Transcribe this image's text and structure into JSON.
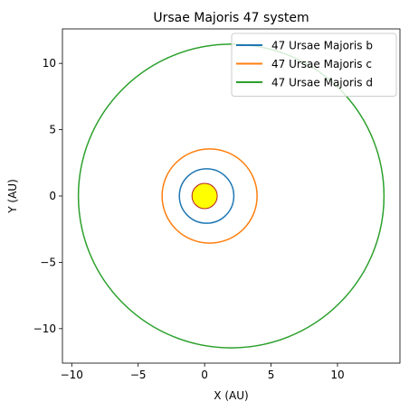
{
  "chart_data": {
    "type": "line",
    "title": "Ursae Majoris 47 system",
    "xlabel": "X (AU)",
    "ylabel": "Y (AU)",
    "xlim": [
      -10.7,
      14.7
    ],
    "ylim": [
      -12.6,
      12.6
    ],
    "aspect": "equal",
    "grid": false,
    "legend_position": "top-right",
    "xticks": [
      {
        "value": -10,
        "label": "−10"
      },
      {
        "value": -5,
        "label": "−5"
      },
      {
        "value": 0,
        "label": "0"
      },
      {
        "value": 5,
        "label": "5"
      },
      {
        "value": 10,
        "label": "10"
      }
    ],
    "yticks": [
      {
        "value": 10,
        "label": "10"
      },
      {
        "value": 5,
        "label": "5"
      },
      {
        "value": 0,
        "label": "0"
      },
      {
        "value": -5,
        "label": "−5"
      },
      {
        "value": -10,
        "label": "−10"
      }
    ],
    "series": [
      {
        "name": "47 Ursae Majoris b",
        "color": "#1f77b4",
        "orbit": {
          "x_min": -1.9,
          "x_max": 2.2,
          "y_extent": 2.05
        }
      },
      {
        "name": "47 Ursae Majoris c",
        "color": "#ff7f0e",
        "orbit": {
          "x_min": -3.2,
          "x_max": 3.95,
          "y_extent": 3.55
        }
      },
      {
        "name": "47 Ursae Majoris d",
        "color": "#2ca02c",
        "orbit": {
          "x_min": -9.5,
          "x_max": 13.5,
          "y_extent": 11.45
        }
      }
    ],
    "star": {
      "x": 0,
      "y": 0,
      "radius": 0.95,
      "fill": "#ffff00",
      "edge": "#b22222"
    }
  }
}
